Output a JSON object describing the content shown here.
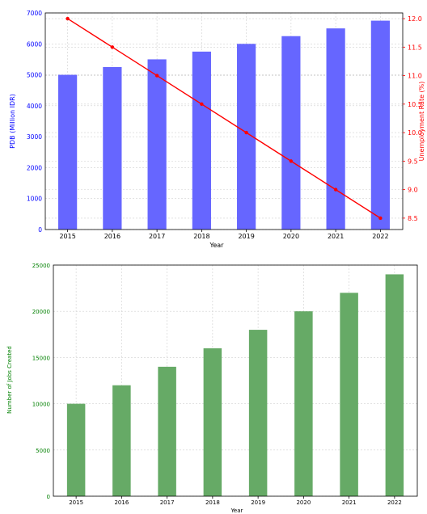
{
  "chart_data": [
    {
      "type": "bar",
      "categories": [
        "2015",
        "2016",
        "2017",
        "2018",
        "2019",
        "2020",
        "2021",
        "2022"
      ],
      "xlabel": "Year",
      "ylabel": "PDB (Million IDR)",
      "ylim": [
        0,
        7000
      ],
      "yticks": [
        "0",
        "1000",
        "2000",
        "3000",
        "4000",
        "5000",
        "6000",
        "7000"
      ],
      "grid": true,
      "series": [
        {
          "name": "",
          "values": [
            5000,
            5250,
            5500,
            5750,
            6000,
            6250,
            6500,
            6750
          ],
          "color": "#6666ff",
          "axis": "left",
          "type": "bar"
        },
        {
          "name": "",
          "values": [
            12.0,
            11.5,
            11.0,
            10.5,
            10.0,
            9.5,
            9.0,
            8.5
          ],
          "color": "#ff0000",
          "axis": "right",
          "type": "line"
        }
      ],
      "y2label": "Unemployment Rate (%)",
      "y2lim": [
        8.3,
        12.1
      ],
      "y2ticks": [
        "8.5",
        "9.0",
        "9.5",
        "10.0",
        "10.5",
        "11.0",
        "11.5",
        "12.0"
      ],
      "y2tick_values": [
        8.5,
        9.0,
        9.5,
        10.0,
        10.5,
        11.0,
        11.5,
        12.0
      ]
    },
    {
      "type": "bar",
      "categories": [
        "2015",
        "2016",
        "2017",
        "2018",
        "2019",
        "2020",
        "2021",
        "2022"
      ],
      "xlabel": "Year",
      "ylabel": "Number of Jobs Created",
      "ylim": [
        0,
        25000
      ],
      "yticks": [
        "0",
        "5000",
        "10000",
        "15000",
        "20000",
        "25000"
      ],
      "grid": true,
      "series": [
        {
          "name": "",
          "values": [
            10000,
            12000,
            14000,
            16000,
            18000,
            20000,
            22000,
            24000
          ],
          "color": "#66aa66",
          "type": "bar"
        }
      ]
    }
  ]
}
